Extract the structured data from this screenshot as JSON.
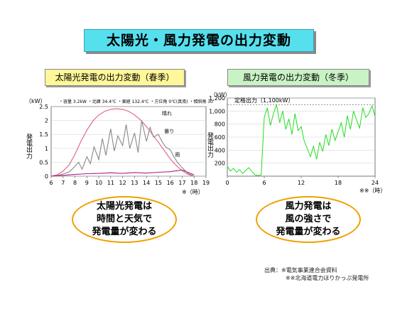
{
  "main_title": "太陽光・風力発電の出力変動",
  "solar": {
    "panel_title": "太陽光発電の出力変動（春季）",
    "note": "・容量 3.2kW ・北緯 34.4℃ ・東経 132.4℃ ・方位角 0℃(真南) ・傾斜角 30℃",
    "oval": [
      "太陽光発電は",
      "時間と天気で",
      "発電量が変わる"
    ]
  },
  "wind": {
    "panel_title": "風力発電の出力変動（冬季）",
    "oval": [
      "風力発電は",
      "風の強さで",
      "発電量が変わる"
    ]
  },
  "source": {
    "line1": "出典：※電気事業連合会資料",
    "line2": "※※北海道電力ほりかっぷ発電所"
  },
  "colors": {
    "title_bg": "#56e0ee",
    "solar_title_bg": "#fff799",
    "wind_title_bg": "#c9f3c4",
    "clear": "#e0607a",
    "cloudy": "#888888",
    "rain": "#b0208a",
    "wind": "#22dd22"
  },
  "chart_data": [
    {
      "type": "line",
      "ylabel": "発電出力",
      "yunit": "（kW）",
      "xunit": "※（時）",
      "xlim": [
        6,
        19
      ],
      "ylim": [
        0,
        2.5
      ],
      "xticks": [
        "6",
        "7",
        "8",
        "9",
        "10",
        "11",
        "12",
        "13",
        "14",
        "15",
        "16",
        "17",
        "18",
        "19"
      ],
      "yticks": [
        "0",
        "0.5",
        "1",
        "1.5",
        "2",
        "2.5"
      ],
      "series": [
        {
          "name": "晴れ",
          "x": [
            6,
            6.5,
            7,
            7.5,
            8,
            8.5,
            9,
            9.5,
            10,
            10.5,
            11,
            11.5,
            12,
            12.5,
            13,
            13.5,
            14,
            14.5,
            15,
            15.5,
            16,
            16.5,
            17,
            17.5,
            18
          ],
          "y": [
            0,
            0.05,
            0.18,
            0.4,
            0.78,
            1.25,
            1.65,
            1.98,
            2.2,
            2.33,
            2.4,
            2.42,
            2.4,
            2.33,
            2.2,
            2.02,
            1.78,
            1.5,
            1.22,
            0.92,
            0.62,
            0.38,
            0.2,
            0.06,
            0
          ]
        },
        {
          "name": "曇り",
          "x": [
            6,
            6.5,
            7,
            7.5,
            8,
            8.3,
            8.6,
            9,
            9.3,
            9.6,
            10,
            10.3,
            10.6,
            11,
            11.3,
            11.6,
            12,
            12.3,
            12.6,
            13,
            13.3,
            13.6,
            14,
            14.3,
            14.6,
            15,
            15.3,
            15.6,
            16,
            16.3,
            16.6,
            17,
            17.5,
            18
          ],
          "y": [
            0,
            0.02,
            0.08,
            0.15,
            0.35,
            0.5,
            0.25,
            0.7,
            0.45,
            1.05,
            0.6,
            1.35,
            0.75,
            1.7,
            0.9,
            1.45,
            1.1,
            1.85,
            1.0,
            1.55,
            0.85,
            2.0,
            1.25,
            1.75,
            1.4,
            1.5,
            1.25,
            1.05,
            0.95,
            0.7,
            0.5,
            0.3,
            0.1,
            0
          ]
        },
        {
          "name": "雨",
          "x": [
            6,
            7,
            8,
            9,
            10,
            11,
            12,
            13,
            14,
            15,
            16,
            17,
            18
          ],
          "y": [
            0,
            0.03,
            0.06,
            0.09,
            0.1,
            0.12,
            0.1,
            0.13,
            0.11,
            0.14,
            0.16,
            0.22,
            0.05
          ]
        }
      ]
    },
    {
      "type": "line",
      "ylabel": "発電出力",
      "yunit": "（kW）",
      "xunit": "※※（時）",
      "xlim": [
        0,
        24
      ],
      "ylim": [
        0,
        1200
      ],
      "xticks": [
        "0",
        "6",
        "12",
        "18",
        "24"
      ],
      "yticks": [
        "200",
        "400",
        "600",
        "800",
        "1,000",
        "1,200"
      ],
      "reference_line": {
        "label": "定格出力（1,100kW）",
        "value": 1100
      },
      "series": [
        {
          "name": "",
          "x": [
            0,
            0.5,
            1,
            1.5,
            2,
            2.5,
            3,
            3.5,
            4,
            4.5,
            5,
            5.5,
            6,
            6.5,
            7,
            7.5,
            8,
            8.5,
            9,
            9.5,
            10,
            10.5,
            11,
            11.5,
            12,
            12.5,
            13,
            13.5,
            14,
            14.5,
            15,
            15.5,
            16,
            16.5,
            17,
            17.5,
            18,
            18.5,
            19,
            19.5,
            20,
            20.5,
            21,
            21.5,
            22,
            22.5,
            23,
            23.5,
            24
          ],
          "y": [
            150,
            80,
            120,
            60,
            100,
            40,
            90,
            130,
            70,
            20,
            10,
            20,
            900,
            1050,
            780,
            960,
            1100,
            820,
            1000,
            720,
            880,
            640,
            960,
            700,
            760,
            540,
            420,
            300,
            460,
            260,
            520,
            380,
            640,
            470,
            720,
            550,
            680,
            820,
            600,
            930,
            720,
            1000,
            860,
            740,
            1050,
            900,
            960,
            1080,
            920
          ]
        }
      ]
    }
  ]
}
